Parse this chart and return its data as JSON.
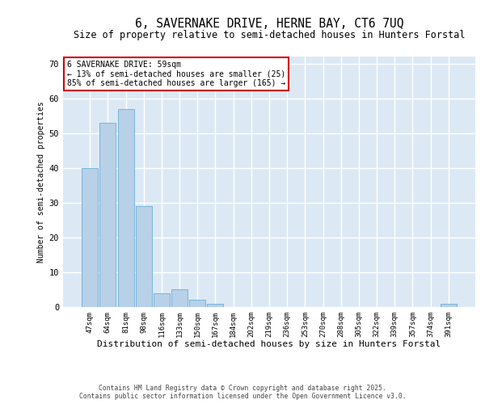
{
  "title": "6, SAVERNAKE DRIVE, HERNE BAY, CT6 7UQ",
  "subtitle": "Size of property relative to semi-detached houses in Hunters Forstal",
  "xlabel": "Distribution of semi-detached houses by size in Hunters Forstal",
  "ylabel": "Number of semi-detached properties",
  "categories": [
    "47sqm",
    "64sqm",
    "81sqm",
    "98sqm",
    "116sqm",
    "133sqm",
    "150sqm",
    "167sqm",
    "184sqm",
    "202sqm",
    "219sqm",
    "236sqm",
    "253sqm",
    "270sqm",
    "288sqm",
    "305sqm",
    "322sqm",
    "339sqm",
    "357sqm",
    "374sqm",
    "391sqm"
  ],
  "values": [
    40,
    53,
    57,
    29,
    4,
    5,
    2,
    1,
    0,
    0,
    0,
    0,
    0,
    0,
    0,
    0,
    0,
    0,
    0,
    0,
    1
  ],
  "bar_color": "#b8d0e8",
  "bar_edge_color": "#6aaed6",
  "annotation_line1": "6 SAVERNAKE DRIVE: 59sqm",
  "annotation_line2": "← 13% of semi-detached houses are smaller (25)",
  "annotation_line3": "85% of semi-detached houses are larger (165) →",
  "annotation_box_facecolor": "#ffffff",
  "annotation_box_edgecolor": "#cc0000",
  "ylim": [
    0,
    72
  ],
  "yticks": [
    0,
    10,
    20,
    30,
    40,
    50,
    60,
    70
  ],
  "plot_bg_color": "#dce9f5",
  "fig_bg_color": "#ffffff",
  "grid_color": "#ffffff",
  "footer_line1": "Contains HM Land Registry data © Crown copyright and database right 2025.",
  "footer_line2": "Contains public sector information licensed under the Open Government Licence v3.0."
}
